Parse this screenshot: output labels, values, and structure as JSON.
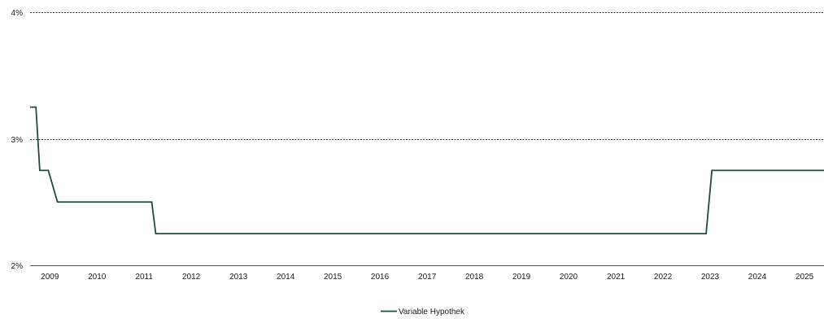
{
  "chart_data": {
    "type": "line",
    "legend_position": "bottom-center",
    "grid": "horizontal-dashed",
    "ylim": [
      2,
      4
    ],
    "y_ticks": [
      {
        "value": 2,
        "label": "2%"
      },
      {
        "value": 3,
        "label": "3%"
      },
      {
        "value": 4,
        "label": "4%"
      }
    ],
    "xlim": [
      "2008-08-01",
      "2025-06-01"
    ],
    "x_ticks": [
      {
        "value": "2009-01-01",
        "label": "2009"
      },
      {
        "value": "2010-01-01",
        "label": "2010"
      },
      {
        "value": "2011-01-01",
        "label": "2011"
      },
      {
        "value": "2012-01-01",
        "label": "2012"
      },
      {
        "value": "2013-01-01",
        "label": "2013"
      },
      {
        "value": "2014-01-01",
        "label": "2014"
      },
      {
        "value": "2015-01-01",
        "label": "2015"
      },
      {
        "value": "2016-01-01",
        "label": "2016"
      },
      {
        "value": "2017-01-01",
        "label": "2017"
      },
      {
        "value": "2018-01-01",
        "label": "2018"
      },
      {
        "value": "2019-01-01",
        "label": "2019"
      },
      {
        "value": "2020-01-01",
        "label": "2020"
      },
      {
        "value": "2021-01-01",
        "label": "2021"
      },
      {
        "value": "2022-01-01",
        "label": "2022"
      },
      {
        "value": "2023-01-01",
        "label": "2023"
      },
      {
        "value": "2024-01-01",
        "label": "2024"
      },
      {
        "value": "2025-01-01",
        "label": "2025"
      }
    ],
    "series": [
      {
        "name": "Variable Hypothek",
        "color": "#1e4d3c",
        "points": [
          {
            "x": "2008-08-01",
            "y": 3.25
          },
          {
            "x": "2008-09-15",
            "y": 3.25
          },
          {
            "x": "2008-10-15",
            "y": 2.75
          },
          {
            "x": "2008-12-20",
            "y": 2.75
          },
          {
            "x": "2009-03-01",
            "y": 2.5
          },
          {
            "x": "2011-03-01",
            "y": 2.5
          },
          {
            "x": "2011-04-01",
            "y": 2.25
          },
          {
            "x": "2022-12-01",
            "y": 2.25
          },
          {
            "x": "2023-01-15",
            "y": 2.75
          },
          {
            "x": "2025-06-01",
            "y": 2.75
          }
        ]
      }
    ]
  }
}
